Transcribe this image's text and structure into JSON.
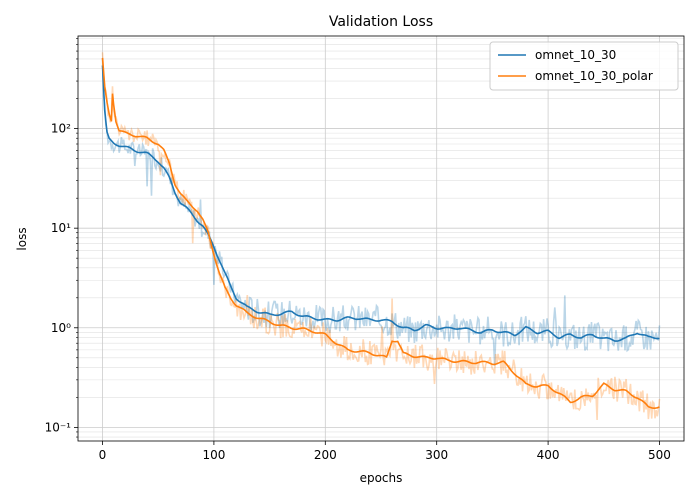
{
  "chart_data": {
    "type": "line",
    "title": "Validation Loss",
    "xlabel": "epochs",
    "ylabel": "loss",
    "xlim": [
      -22,
      522
    ],
    "ylim": [
      0.073,
      850
    ],
    "yscale": "log",
    "grid": "major and minor",
    "legend": "top-right",
    "x_ticks": [
      0,
      100,
      200,
      300,
      400,
      500
    ],
    "x_tick_labels": [
      "0",
      "100",
      "200",
      "300",
      "400",
      "500"
    ],
    "y_ticks": [
      0.1,
      1,
      10,
      100
    ],
    "y_tick_labels": [
      "10⁻¹",
      "10⁰",
      "10¹",
      "10²"
    ],
    "series": [
      {
        "name": "omnet_10_30",
        "color": "#1f77b4",
        "raw_alpha": 0.3,
        "x": [
          0,
          2,
          4,
          6,
          8,
          10,
          15,
          20,
          25,
          30,
          35,
          40,
          45,
          50,
          55,
          60,
          65,
          70,
          75,
          80,
          85,
          90,
          95,
          100,
          105,
          110,
          115,
          120,
          130,
          140,
          150,
          160,
          170,
          180,
          190,
          200,
          210,
          220,
          230,
          240,
          250,
          260,
          270,
          280,
          290,
          300,
          310,
          320,
          330,
          340,
          350,
          360,
          370,
          380,
          390,
          400,
          410,
          420,
          430,
          440,
          450,
          460,
          470,
          480,
          490,
          500
        ],
        "smoothed": [
          430,
          150,
          90,
          78,
          75,
          72,
          68,
          65,
          63,
          60,
          58,
          56,
          52,
          47,
          40,
          32,
          23,
          18,
          16,
          14,
          12,
          10.5,
          8.5,
          6.5,
          4.8,
          3.5,
          2.6,
          2.0,
          1.6,
          1.45,
          1.35,
          1.38,
          1.45,
          1.3,
          1.25,
          1.2,
          1.2,
          1.25,
          1.25,
          1.2,
          1.2,
          1.15,
          1.0,
          0.95,
          1.05,
          1.0,
          0.98,
          1.0,
          0.95,
          0.9,
          0.95,
          0.9,
          0.85,
          1.0,
          0.9,
          0.92,
          0.8,
          0.85,
          0.8,
          0.85,
          0.78,
          0.75,
          0.78,
          0.9,
          0.8,
          0.8
        ]
      },
      {
        "name": "omnet_10_30_polar",
        "color": "#ff7f0e",
        "raw_alpha": 0.3,
        "x": [
          0,
          2,
          4,
          6,
          8,
          9,
          10,
          12,
          15,
          20,
          25,
          30,
          35,
          40,
          45,
          50,
          55,
          60,
          65,
          70,
          75,
          80,
          85,
          90,
          95,
          100,
          105,
          110,
          115,
          120,
          130,
          140,
          150,
          160,
          170,
          180,
          190,
          200,
          210,
          220,
          230,
          240,
          250,
          255,
          260,
          265,
          270,
          280,
          290,
          300,
          310,
          320,
          330,
          340,
          350,
          360,
          370,
          380,
          390,
          400,
          410,
          420,
          430,
          440,
          450,
          460,
          470,
          480,
          490,
          500
        ],
        "smoothed": [
          500,
          260,
          180,
          140,
          120,
          230,
          180,
          120,
          95,
          90,
          88,
          85,
          82,
          80,
          75,
          70,
          60,
          45,
          28,
          22,
          19,
          17,
          15,
          12,
          9,
          5.5,
          3.5,
          2.5,
          2.0,
          1.7,
          1.4,
          1.25,
          1.15,
          1.05,
          1.0,
          0.97,
          0.92,
          0.85,
          0.7,
          0.6,
          0.58,
          0.56,
          0.52,
          0.5,
          0.75,
          0.74,
          0.55,
          0.52,
          0.5,
          0.5,
          0.47,
          0.46,
          0.45,
          0.45,
          0.44,
          0.45,
          0.35,
          0.27,
          0.26,
          0.26,
          0.22,
          0.18,
          0.2,
          0.21,
          0.27,
          0.24,
          0.23,
          0.2,
          0.16,
          0.16
        ]
      }
    ]
  }
}
